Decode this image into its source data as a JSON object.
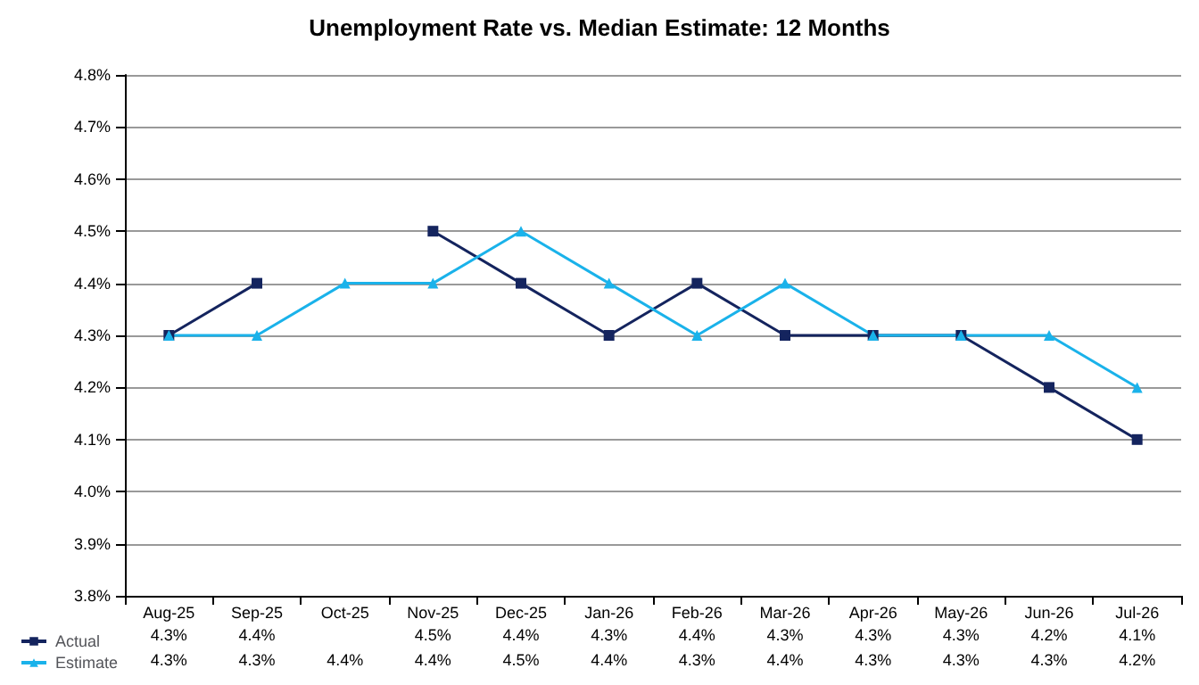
{
  "chart_data": {
    "type": "line",
    "title": "Unemployment Rate vs. Median Estimate: 12 Months",
    "categories": [
      "Aug-25",
      "Sep-25",
      "Oct-25",
      "Nov-25",
      "Dec-25",
      "Jan-26",
      "Feb-26",
      "Mar-26",
      "Apr-26",
      "May-26",
      "Jun-26",
      "Jul-26"
    ],
    "series": [
      {
        "name": "Actual",
        "color": "#14245e",
        "marker": "square",
        "values": [
          4.3,
          4.4,
          null,
          4.5,
          4.4,
          4.3,
          4.4,
          4.3,
          4.3,
          4.3,
          4.2,
          4.1
        ],
        "value_labels": [
          "4.3%",
          "4.4%",
          null,
          "4.5%",
          "4.4%",
          "4.3%",
          "4.4%",
          "4.3%",
          "4.3%",
          "4.3%",
          "4.2%",
          "4.1%"
        ]
      },
      {
        "name": "Estimate",
        "color": "#1ab2ea",
        "marker": "triangle",
        "values": [
          4.3,
          4.3,
          4.4,
          4.4,
          4.5,
          4.4,
          4.3,
          4.4,
          4.3,
          4.3,
          4.3,
          4.2
        ],
        "value_labels": [
          "4.3%",
          "4.3%",
          "4.4%",
          "4.4%",
          "4.5%",
          "4.4%",
          "4.3%",
          "4.4%",
          "4.3%",
          "4.3%",
          "4.3%",
          "4.2%"
        ]
      }
    ],
    "ylim": [
      3.8,
      4.8
    ],
    "yticks": [
      {
        "value": 3.8,
        "label": "3.8%"
      },
      {
        "value": 3.9,
        "label": "3.9%"
      },
      {
        "value": 4.0,
        "label": "4.0%"
      },
      {
        "value": 4.1,
        "label": "4.1%"
      },
      {
        "value": 4.2,
        "label": "4.2%"
      },
      {
        "value": 4.3,
        "label": "4.3%"
      },
      {
        "value": 4.4,
        "label": "4.4%"
      },
      {
        "value": 4.5,
        "label": "4.5%"
      },
      {
        "value": 4.6,
        "label": "4.6%"
      },
      {
        "value": 4.7,
        "label": "4.7%"
      },
      {
        "value": 4.8,
        "label": "4.8%"
      }
    ],
    "grid": "y",
    "legend": "bottom left",
    "line_style": "solid"
  }
}
